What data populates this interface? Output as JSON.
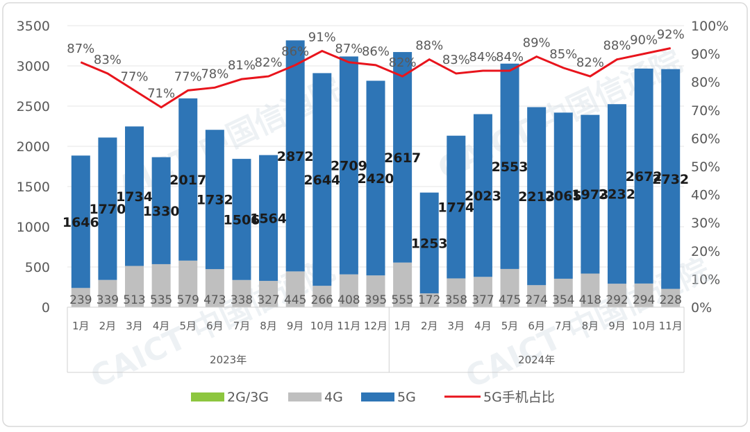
{
  "chart_data": {
    "type": "bar",
    "stacked": true,
    "categories": [
      "1月",
      "2月",
      "3月",
      "4月",
      "5月",
      "6月",
      "7月",
      "8月",
      "9月",
      "10月",
      "11月",
      "12月",
      "1月",
      "2月",
      "3月",
      "4月",
      "5月",
      "6月",
      "7月",
      "8月",
      "9月",
      "10月",
      "11月"
    ],
    "groups": [
      {
        "label": "2023年",
        "count": 12
      },
      {
        "label": "2024年",
        "count": 11
      }
    ],
    "series": [
      {
        "name": "2G/3G",
        "color": "#8dc63f",
        "values": [
          0,
          0,
          0,
          0,
          0,
          0,
          0,
          0,
          0,
          0,
          0,
          0,
          0,
          0,
          0,
          0,
          0,
          0,
          0,
          0,
          0,
          0,
          0
        ]
      },
      {
        "name": "4G",
        "color": "#bfbfbf",
        "values": [
          239,
          339,
          513,
          535,
          579,
          473,
          338,
          327,
          445,
          266,
          408,
          395,
          555,
          172,
          358,
          377,
          475,
          274,
          354,
          418,
          292,
          294,
          228
        ]
      },
      {
        "name": "5G",
        "color": "#2e75b6",
        "values": [
          1646,
          1770,
          1734,
          1330,
          2017,
          1732,
          1506,
          1564,
          2872,
          2644,
          2709,
          2420,
          2617,
          1253,
          1774,
          2023,
          2553,
          2213,
          2065,
          1973,
          2232,
          2672,
          2732
        ]
      },
      {
        "name": "5G手机占比",
        "type": "line",
        "color": "#e8141c",
        "axis": "right",
        "values": [
          87,
          83,
          77,
          71,
          77,
          78,
          81,
          82,
          86,
          91,
          87,
          86,
          82,
          88,
          83,
          84,
          84,
          89,
          85,
          82,
          88,
          90,
          92
        ]
      }
    ],
    "y_left": {
      "range": [
        0,
        3500
      ],
      "ticks": [
        "0",
        "500",
        "1000",
        "1500",
        "2000",
        "2500",
        "3000",
        "3500"
      ]
    },
    "y_right": {
      "range": [
        0,
        100
      ],
      "ticks": [
        "0%",
        "10%",
        "20%",
        "30%",
        "40%",
        "50%",
        "60%",
        "70%",
        "80%",
        "90%",
        "100%"
      ]
    },
    "grid": true,
    "legend": "bottom"
  },
  "watermark": "CAICT 中国信通院"
}
